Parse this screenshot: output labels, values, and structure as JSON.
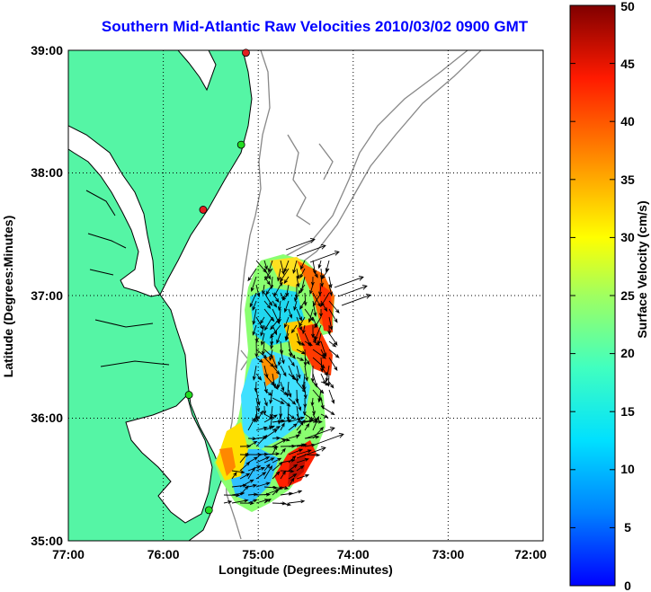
{
  "title": "Southern Mid-Atlantic Raw Velocities 2010/03/02 0900 GMT",
  "map": {
    "xlabel": "Longitude (Degrees:Minutes)",
    "ylabel": "Latitude (Degrees:Minutes)",
    "lon_range": [
      -77,
      -72
    ],
    "lat_range": [
      35,
      39
    ],
    "x_ticks": [
      "77:00",
      "76:00",
      "75:00",
      "74:00",
      "73:00",
      "72:00"
    ],
    "y_ticks": [
      "35:00",
      "36:00",
      "37:00",
      "38:00",
      "39:00"
    ],
    "grid": "dotted",
    "land_color": "#55f5a5",
    "coast_color": "#000000",
    "isobath_color": "#888888"
  },
  "colorbar": {
    "label": "Surface Velocity (cm/s)",
    "ticks": [
      "0",
      "5",
      "10",
      "15",
      "20",
      "25",
      "30",
      "35",
      "40",
      "45",
      "50"
    ],
    "range": [
      0,
      50
    ],
    "colormap": "jet"
  },
  "stations": [
    {
      "lon": -75.13,
      "lat": 38.98,
      "color": "#e02020"
    },
    {
      "lon": -75.18,
      "lat": 38.23,
      "color": "#22dd22"
    },
    {
      "lon": -75.58,
      "lat": 37.7,
      "color": "#e02020"
    },
    {
      "lon": -75.73,
      "lat": 36.19,
      "color": "#22dd22"
    },
    {
      "lon": -75.52,
      "lat": 35.25,
      "color": "#22dd22"
    }
  ]
}
